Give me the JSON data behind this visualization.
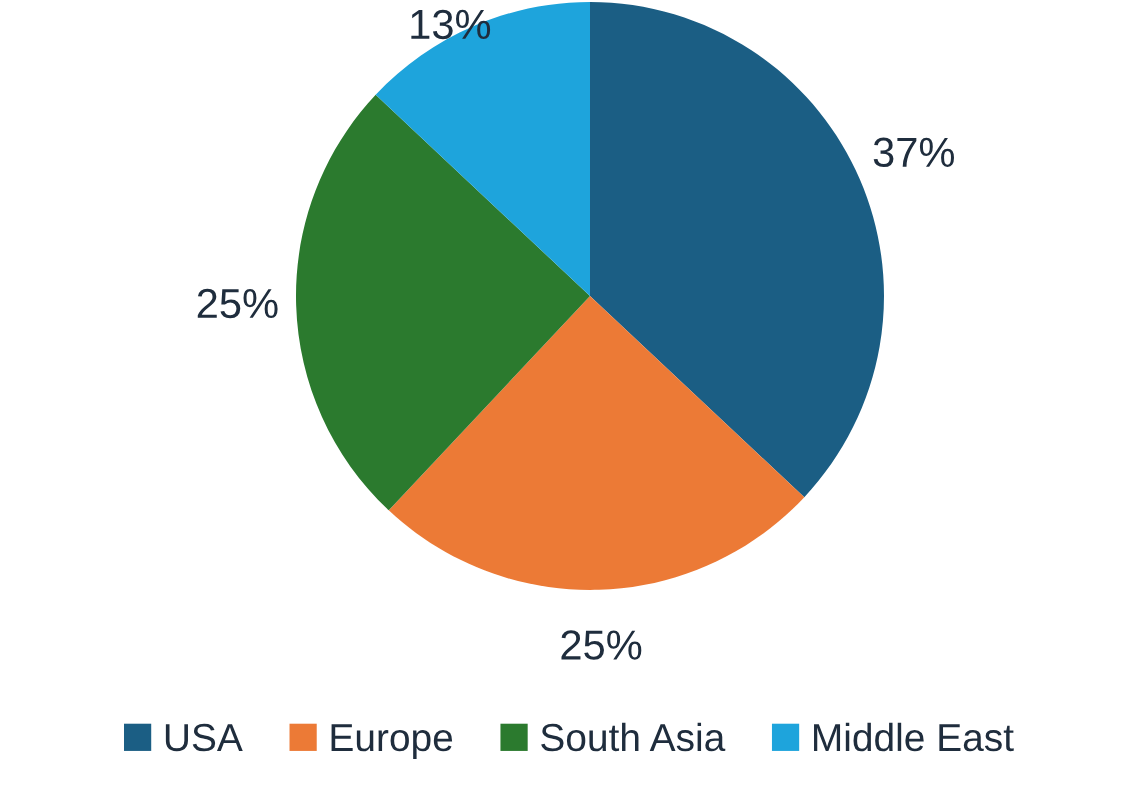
{
  "chart_data": {
    "type": "pie",
    "categories": [
      "USA",
      "Europe",
      "South Asia",
      "Middle East"
    ],
    "values": [
      37,
      25,
      25,
      13
    ],
    "colors": [
      "#1b5e84",
      "#ec7a36",
      "#2b7a2e",
      "#1ea4dc"
    ],
    "value_labels": [
      "37%",
      "25%",
      "25%",
      "13%"
    ],
    "legend": "bottom"
  }
}
